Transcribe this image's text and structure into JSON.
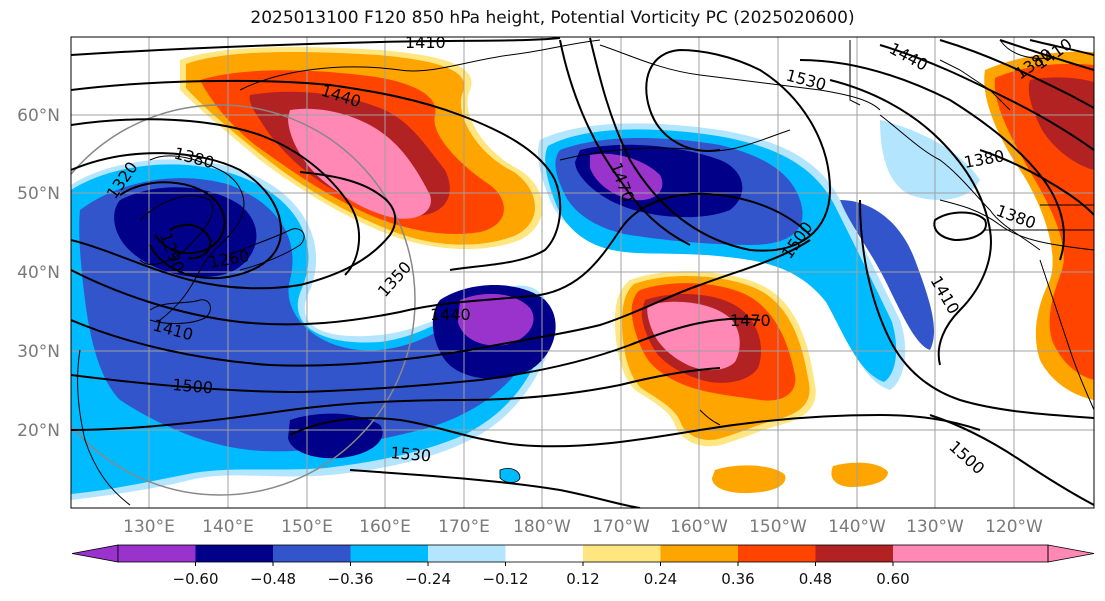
{
  "title": "2025013100 F120 850 hPa height, Potential Vorticity PC (2025020600)",
  "map": {
    "lat_labels": [
      "60°N",
      "50°N",
      "40°N",
      "30°N",
      "20°N"
    ],
    "lon_labels": [
      "130°E",
      "140°E",
      "150°E",
      "160°E",
      "170°E",
      "180°W",
      "170°W",
      "160°W",
      "150°W",
      "140°W",
      "130°W",
      "120°W"
    ],
    "contour_labels": [
      "1410",
      "1440",
      "1530",
      "1440",
      "1380",
      "1470",
      "1320",
      "1380",
      "1290",
      "1260",
      "1350",
      "1500",
      "1440",
      "1410",
      "1470",
      "1410",
      "1500",
      "1530",
      "1500",
      "1380",
      "1380",
      "1410"
    ]
  },
  "colorbar": {
    "tick_labels": [
      "−0.60",
      "−0.48",
      "−0.36",
      "−0.24",
      "−0.12",
      "0.12",
      "0.24",
      "0.36",
      "0.48",
      "0.60"
    ],
    "colors": [
      "#9933cc",
      "#000088",
      "#3355cc",
      "#00bbff",
      "#b3e5ff",
      "#ffffff",
      "#ffe680",
      "#ffa500",
      "#ff4400",
      "#b22222",
      "#ff88b4",
      "#ff88b4"
    ]
  }
}
